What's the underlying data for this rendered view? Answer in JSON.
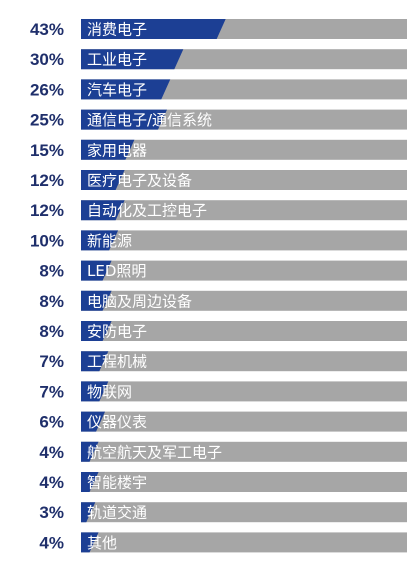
{
  "chart_data": {
    "type": "bar",
    "orientation": "horizontal",
    "title": "",
    "xlabel": "",
    "ylabel": "",
    "categories": [
      "消费电子",
      "工业电子",
      "汽车电子",
      "通信电子/通信系统",
      "家用电器",
      "医疗电子及设备",
      "自动化及工控电子",
      "新能源",
      "LED照明",
      "电脑及周边设备",
      "安防电子",
      "工程机械",
      "物联网",
      "仪器仪表",
      "航空航天及军工电子",
      "智能楼宇",
      "轨道交通",
      "其他"
    ],
    "values": [
      43,
      30,
      26,
      25,
      15,
      12,
      12,
      10,
      8,
      8,
      8,
      7,
      7,
      6,
      4,
      4,
      3,
      4
    ],
    "value_labels": [
      "43%",
      "30%",
      "26%",
      "25%",
      "15%",
      "12%",
      "12%",
      "10%",
      "8%",
      "8%",
      "8%",
      "7%",
      "7%",
      "6%",
      "4%",
      "4%",
      "3%",
      "4%"
    ],
    "xlim": [
      0,
      100
    ],
    "grid": false,
    "colors": {
      "bar": "#1c3f94",
      "track": "#a6a6a6",
      "value_text": "#1f2f6b",
      "label_text": "#ffffff"
    }
  }
}
